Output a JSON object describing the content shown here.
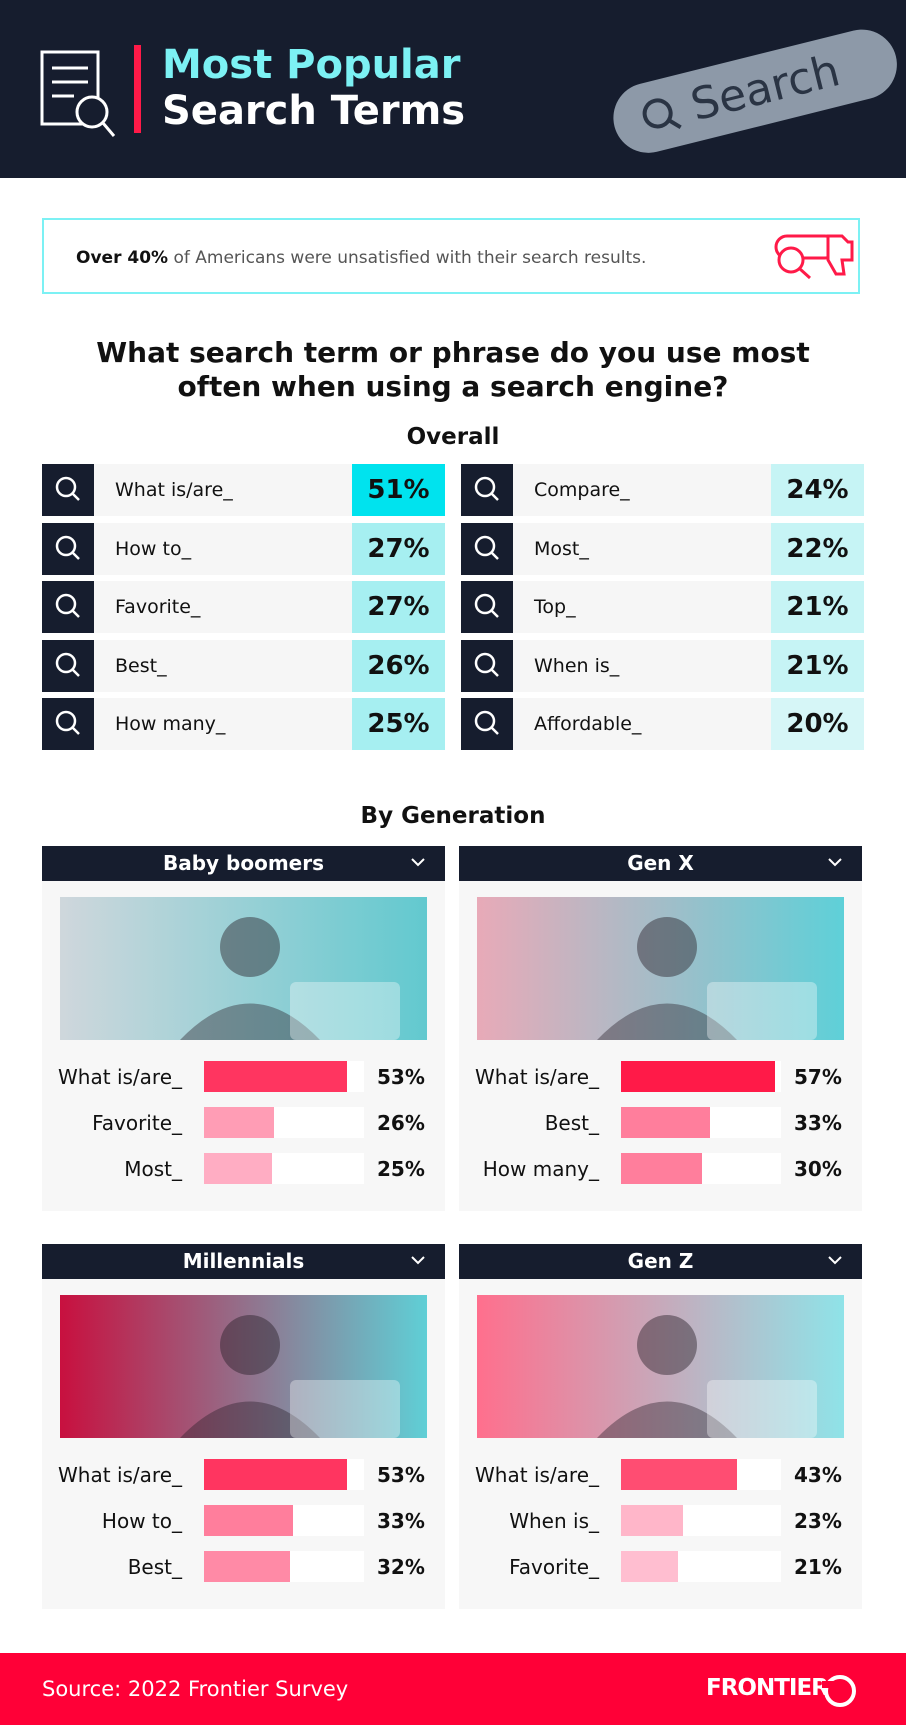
{
  "header": {
    "title_line1": "Most Popular",
    "title_line2": "Search Terms",
    "search_placeholder": "Search"
  },
  "callout": {
    "bold": "Over 40%",
    "text": "of Americans were unsatisfied with their search results."
  },
  "question": {
    "line1": "What search term or phrase do you use most",
    "line2": "often when using a search engine?"
  },
  "overall": {
    "title": "Overall",
    "items": [
      {
        "term": "What is/are_",
        "value": 51,
        "label": "51%",
        "color": "#00e3ee"
      },
      {
        "term": "How to_",
        "value": 27,
        "label": "27%",
        "color": "#a6eff1"
      },
      {
        "term": "Favorite_",
        "value": 27,
        "label": "27%",
        "color": "#a6eff1"
      },
      {
        "term": "Best_",
        "value": 26,
        "label": "26%",
        "color": "#a6eff1"
      },
      {
        "term": "How many_",
        "value": 25,
        "label": "25%",
        "color": "#a6eff1"
      },
      {
        "term": "Compare_",
        "value": 24,
        "label": "24%",
        "color": "#c6f4f5"
      },
      {
        "term": "Most_",
        "value": 22,
        "label": "22%",
        "color": "#c6f4f5"
      },
      {
        "term": "Top_",
        "value": 21,
        "label": "21%",
        "color": "#c6f4f5"
      },
      {
        "term": "When is_",
        "value": 21,
        "label": "21%",
        "color": "#c6f4f5"
      },
      {
        "term": "Affordable_",
        "value": 20,
        "label": "20%",
        "color": "#d6f6f7"
      }
    ]
  },
  "by_generation": {
    "title": "By Generation",
    "groups": [
      {
        "name": "Baby boomers",
        "rows": [
          {
            "term": "What is/are_",
            "value": 53,
            "label": "53%",
            "color": "#ff3560"
          },
          {
            "term": "Favorite_",
            "value": 26,
            "label": "26%",
            "color": "#ff9db5"
          },
          {
            "term": "Most_",
            "value": 25,
            "label": "25%",
            "color": "#ffadc3"
          }
        ]
      },
      {
        "name": "Gen X",
        "rows": [
          {
            "term": "What is/are_",
            "value": 57,
            "label": "57%",
            "color": "#ff1a48"
          },
          {
            "term": "Best_",
            "value": 33,
            "label": "33%",
            "color": "#ff7e9c"
          },
          {
            "term": "How many_",
            "value": 30,
            "label": "30%",
            "color": "#ff7e9c"
          }
        ]
      },
      {
        "name": "Millennials",
        "rows": [
          {
            "term": "What is/are_",
            "value": 53,
            "label": "53%",
            "color": "#ff3560"
          },
          {
            "term": "How to_",
            "value": 33,
            "label": "33%",
            "color": "#ff7e9c"
          },
          {
            "term": "Best_",
            "value": 32,
            "label": "32%",
            "color": "#ff8aa6"
          }
        ]
      },
      {
        "name": "Gen Z",
        "rows": [
          {
            "term": "What is/are_",
            "value": 43,
            "label": "43%",
            "color": "#ff4d72"
          },
          {
            "term": "When is_",
            "value": 23,
            "label": "23%",
            "color": "#ffb6c9"
          },
          {
            "term": "Favorite_",
            "value": 21,
            "label": "21%",
            "color": "#ffbed0"
          }
        ]
      }
    ]
  },
  "footer": {
    "source": "Source: 2022 Frontier Survey",
    "logo": "FRONTIER"
  }
}
